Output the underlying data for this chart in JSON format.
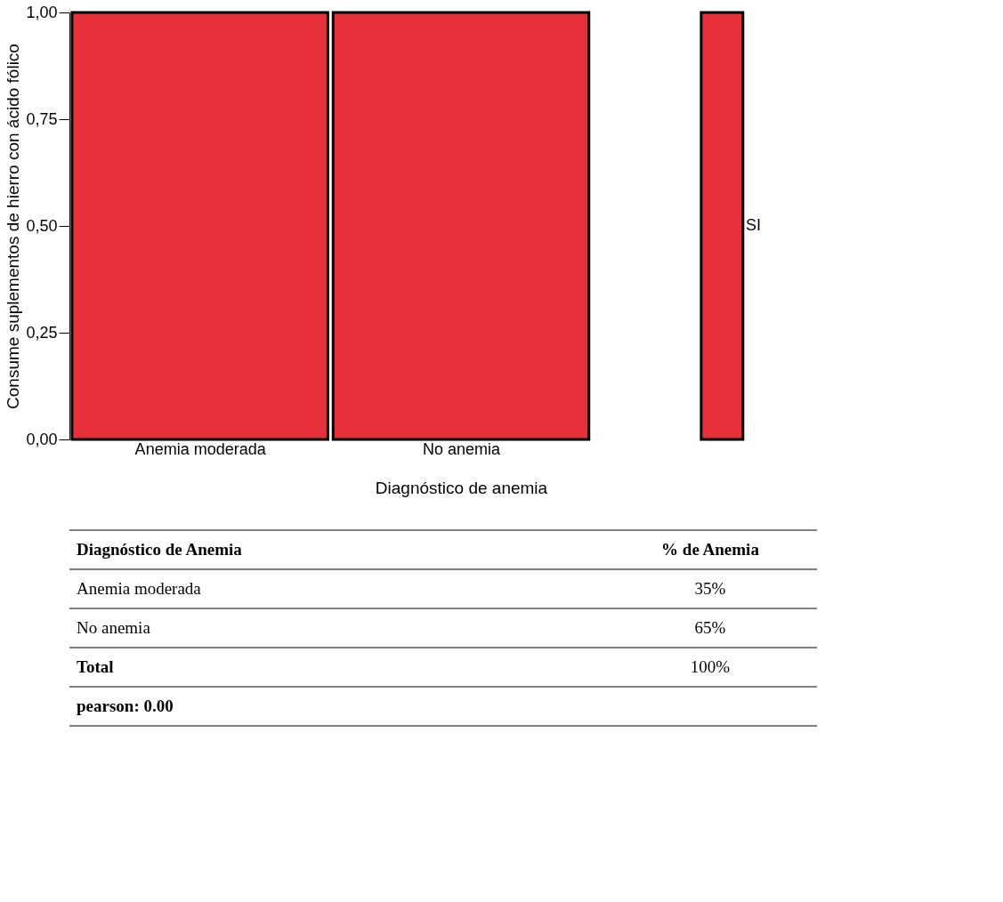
{
  "chart_data": [
    {
      "type": "bar",
      "categories": [
        "Anemia moderada",
        "No anemia",
        null
      ],
      "values": [
        1.0,
        1.0,
        1.0
      ],
      "color": "#e8303a",
      "ylim": [
        0,
        1
      ],
      "yticks": [
        {
          "value": 0,
          "label": "0,00"
        },
        {
          "value": 0.25,
          "label": "0,25"
        },
        {
          "value": 0.5,
          "label": "0,50"
        },
        {
          "value": 0.75,
          "label": "0,75"
        },
        {
          "value": 1,
          "label": "1,00"
        }
      ],
      "xlabel": "Diagnóstico de anemia",
      "ylabel": "Consume suplementos de hierro con ácido fólico",
      "grid": false,
      "annotations": [
        "SI"
      ]
    },
    {
      "type": "other",
      "annotations": [
        "Diagnóstico de Anemia",
        "% de Anemia",
        "Anemia moderada",
        "35%",
        "No anemia",
        "65%",
        "Total",
        "100%",
        "pearson: 0.00"
      ]
    }
  ]
}
